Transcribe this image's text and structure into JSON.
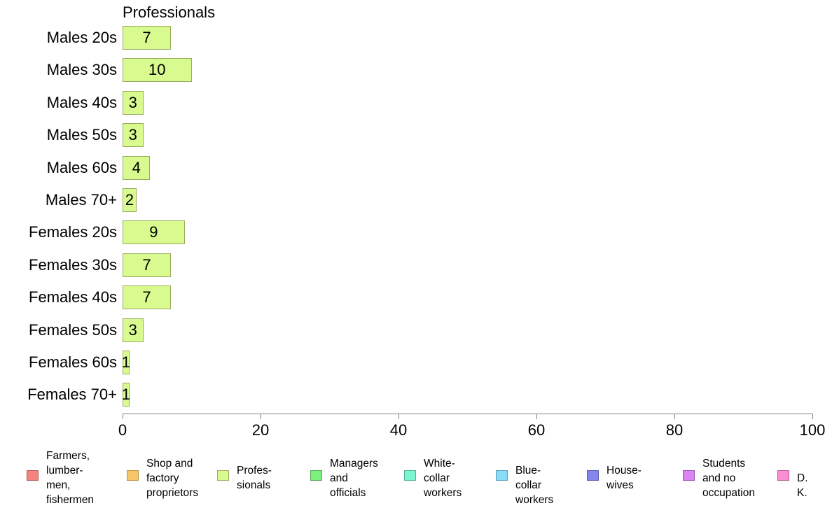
{
  "chart_data": {
    "type": "bar",
    "orientation": "horizontal",
    "title": "Professionals",
    "categories": [
      "Males 20s",
      "Males 30s",
      "Males 40s",
      "Males 50s",
      "Males 60s",
      "Males 70+",
      "Females 20s",
      "Females 30s",
      "Females 40s",
      "Females 50s",
      "Females 60s",
      "Females 70+"
    ],
    "values": [
      7,
      10,
      3,
      3,
      4,
      2,
      9,
      7,
      7,
      3,
      1,
      1
    ],
    "value_labels": [
      "7",
      "10",
      "3",
      "3",
      "4",
      "2",
      "9",
      "7",
      "7",
      "3",
      "1",
      "1"
    ],
    "xlabel": "",
    "ylabel": "",
    "xlim": [
      0,
      100
    ],
    "xticks": [
      0,
      20,
      40,
      60,
      80,
      100
    ],
    "grid": "off",
    "bar_color": "#d9fa8e",
    "bar_border_color": "#9aab60",
    "axis_color": "#808080",
    "legend_position": "bottom"
  },
  "legend": {
    "items": [
      {
        "key": "farmers",
        "label": "Farmers,\nlumber-\nmen,\nfishermen",
        "color": "#f4847d",
        "border": "#b35b56"
      },
      {
        "key": "shop",
        "label": "Shop and\nfactory\nproprietors",
        "color": "#f7c767",
        "border": "#b8923f"
      },
      {
        "key": "professionals",
        "label": "Profes-\nsionals",
        "color": "#d9fa8e",
        "border": "#9aab60"
      },
      {
        "key": "managers",
        "label": "Managers\nand\nofficials",
        "color": "#7cef7c",
        "border": "#55a555"
      },
      {
        "key": "white-collar",
        "label": "White-\ncollar\nworkers",
        "color": "#7df5d0",
        "border": "#50b395"
      },
      {
        "key": "blue-collar",
        "label": "Blue-collar\nworkers",
        "color": "#87dcf8",
        "border": "#569bb8"
      },
      {
        "key": "housewives",
        "label": "House-\nwives",
        "color": "#8585f0",
        "border": "#5858ad"
      },
      {
        "key": "students",
        "label": "Students\nand no\noccupation",
        "color": "#d985f2",
        "border": "#9b50b3"
      },
      {
        "key": "dk",
        "label": "D. K.",
        "color": "#fa8ed0",
        "border": "#b85a95"
      }
    ]
  }
}
